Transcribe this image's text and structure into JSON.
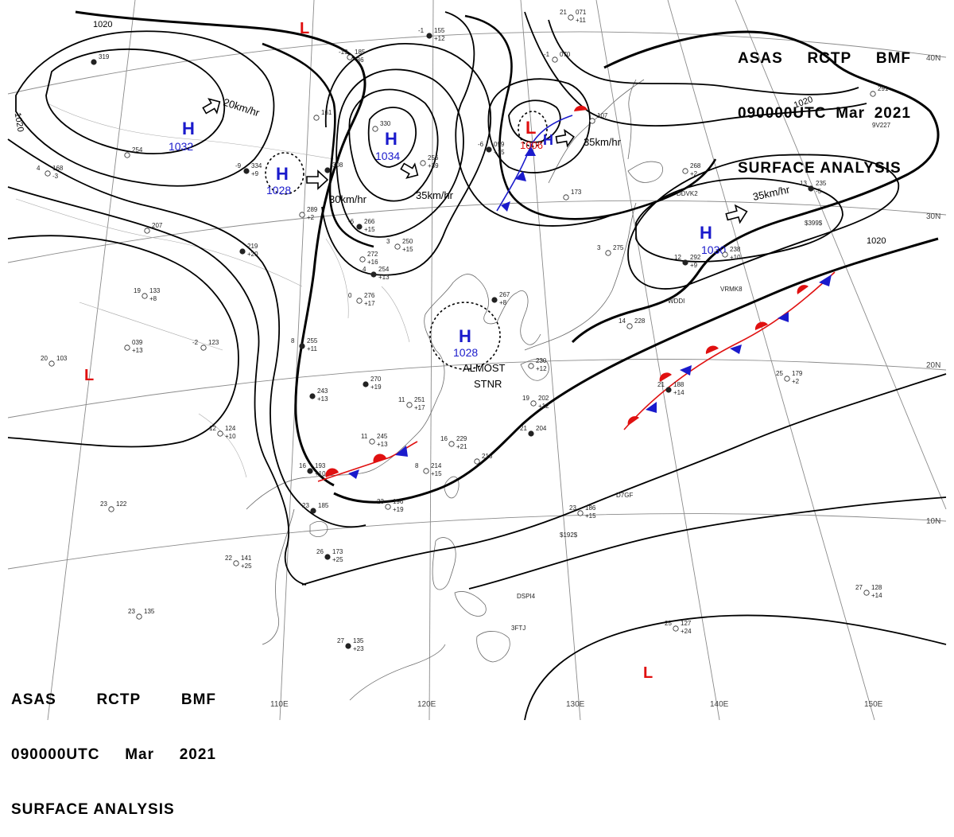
{
  "header": {
    "line1": [
      "ASAS",
      "RCTP",
      "BMF"
    ],
    "line2": [
      "090000UTC",
      "Mar",
      "2021"
    ],
    "line3": "SURFACE ANALYSIS"
  },
  "colors": {
    "high": "#1a1acc",
    "low": "#e01010",
    "isobar": "#000000",
    "grid": "#888888",
    "coast": "#666666"
  },
  "grid_labels": {
    "lon": [
      "110E",
      "120E",
      "130E",
      "140E",
      "150E"
    ],
    "lat": [
      "40N",
      "30N",
      "20N",
      "10N"
    ]
  },
  "isobar_labels": [
    "1020",
    "1020",
    "1020",
    "1020"
  ],
  "pressure_centers": [
    {
      "type": "H",
      "value": "1032"
    },
    {
      "type": "H",
      "value": "1028"
    },
    {
      "type": "H",
      "value": "1034"
    },
    {
      "type": "H",
      "value": "1030"
    },
    {
      "type": "H",
      "value": "1028"
    },
    {
      "type": "L",
      "value": "1006"
    },
    {
      "type": "L",
      "value": ""
    },
    {
      "type": "L",
      "value": ""
    },
    {
      "type": "L",
      "value": ""
    }
  ],
  "motion_labels": [
    "20km/hr",
    "30km/hr",
    "35km/hr",
    "35km/hr",
    "35km/hr"
  ],
  "annotations": {
    "almost": "ALMOST",
    "stnr": "STNR"
  },
  "station_plots": [
    {
      "p": "155",
      "t": "-1",
      "d": "+12"
    },
    {
      "p": "071",
      "t": "21",
      "d": "+11"
    },
    {
      "p": "185",
      "t": "-19",
      "d": "-36"
    },
    {
      "p": "319",
      "t": "",
      "d": ""
    },
    {
      "p": "161",
      "t": "",
      "d": ""
    },
    {
      "p": "330",
      "t": "",
      "d": ""
    },
    {
      "p": "334",
      "t": "-9",
      "d": "+9"
    },
    {
      "p": "254",
      "t": "",
      "d": ""
    },
    {
      "p": "168",
      "t": "4",
      "d": "-3"
    },
    {
      "p": "308",
      "t": "",
      "d": ""
    },
    {
      "p": "289",
      "t": "",
      "d": "+2"
    },
    {
      "p": "256",
      "t": "",
      "d": "+39"
    },
    {
      "p": "099",
      "t": "-6",
      "d": "+15"
    },
    {
      "p": "070",
      "t": "-1",
      "d": ""
    },
    {
      "p": "107",
      "t": "",
      "d": ""
    },
    {
      "p": "266",
      "t": "-6",
      "d": "+15"
    },
    {
      "p": "173",
      "t": "",
      "d": ""
    },
    {
      "p": "268",
      "t": "",
      "d": "+2"
    },
    {
      "p": "235",
      "t": "13",
      "d": "-5"
    },
    {
      "p": "291",
      "t": "",
      "d": ""
    },
    {
      "p": "207",
      "t": "",
      "d": ""
    },
    {
      "p": "219",
      "t": "",
      "d": "+20"
    },
    {
      "p": "272",
      "t": "",
      "d": "+16"
    },
    {
      "p": "250",
      "t": "3",
      "d": "+15"
    },
    {
      "p": "254",
      "t": "4",
      "d": "+13"
    },
    {
      "p": "275",
      "t": "3",
      "d": ""
    },
    {
      "p": "238",
      "t": "",
      "d": "+10"
    },
    {
      "p": "292",
      "t": "12",
      "d": "+9"
    },
    {
      "p": "133",
      "t": "19",
      "d": "+8"
    },
    {
      "p": "276",
      "t": "0",
      "d": "+17"
    },
    {
      "p": "267",
      "t": "",
      "d": "+8"
    },
    {
      "p": "039",
      "t": "",
      "d": "+13"
    },
    {
      "p": "123",
      "t": "-2",
      "d": ""
    },
    {
      "p": "255",
      "t": "8",
      "d": "+11"
    },
    {
      "p": "228",
      "t": "14",
      "d": ""
    },
    {
      "p": "103",
      "t": "20",
      "d": ""
    },
    {
      "p": "270",
      "t": "",
      "d": "+19"
    },
    {
      "p": "230",
      "t": "",
      "d": "+12"
    },
    {
      "p": "179",
      "t": "25",
      "d": "+2"
    },
    {
      "p": "243",
      "t": "",
      "d": "+13"
    },
    {
      "p": "251",
      "t": "11",
      "d": "+17"
    },
    {
      "p": "202",
      "t": "19",
      "d": "+12"
    },
    {
      "p": "188",
      "t": "21",
      "d": "+14"
    },
    {
      "p": "124",
      "t": "12",
      "d": "+10"
    },
    {
      "p": "245",
      "t": "11",
      "d": "+13"
    },
    {
      "p": "204",
      "t": "21",
      "d": ""
    },
    {
      "p": "229",
      "t": "16",
      "d": "+21"
    },
    {
      "p": "216",
      "t": "",
      "d": ""
    },
    {
      "p": "193",
      "t": "16",
      "d": "+10"
    },
    {
      "p": "214",
      "t": "8",
      "d": "+15"
    },
    {
      "p": "196",
      "t": "23",
      "d": "+19"
    },
    {
      "p": "185",
      "t": "23",
      "d": ""
    },
    {
      "p": "186",
      "t": "23",
      "d": "+15"
    },
    {
      "p": "122",
      "t": "23",
      "d": ""
    },
    {
      "p": "173",
      "t": "26",
      "d": "+25"
    },
    {
      "p": "141",
      "t": "22",
      "d": "+25"
    },
    {
      "p": "135",
      "t": "23",
      "d": ""
    },
    {
      "p": "135",
      "t": "27",
      "d": "+23"
    },
    {
      "p": "127",
      "t": "25",
      "d": "+24"
    },
    {
      "p": "128",
      "t": "27",
      "d": "+14"
    }
  ],
  "ship_ids": [
    "9V227",
    "DDVK2",
    "WDDI",
    "VRMK8",
    "$399$",
    "$192$",
    "D7GF",
    "DSPI4",
    "3FTJ"
  ]
}
